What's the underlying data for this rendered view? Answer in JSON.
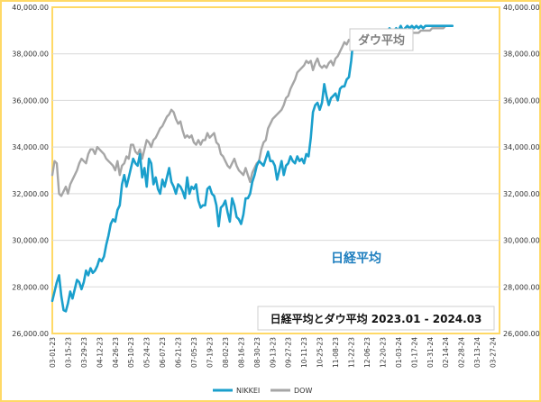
{
  "chart_data": {
    "type": "line",
    "title": "日経平均とダウ平均 2023.01 - 2024.03",
    "ylim": [
      26000,
      40000
    ],
    "y_ticks": [
      "26,000.00",
      "28,000.00",
      "30,000.00",
      "32,000.00",
      "34,000.00",
      "36,000.00",
      "38,000.00",
      "40,000.00"
    ],
    "y_tick_values": [
      26000,
      28000,
      30000,
      32000,
      34000,
      36000,
      38000,
      40000
    ],
    "x_ticks": [
      "03-01-23",
      "03-15-23",
      "03-29-23",
      "04-12-23",
      "04-26-23",
      "05-10-23",
      "05-24-23",
      "06-07-23",
      "06-21-23",
      "07-05-23",
      "07-19-23",
      "08-02-23",
      "08-16-23",
      "08-30-23",
      "09-13-23",
      "09-27-23",
      "10-11-23",
      "10-25-23",
      "11-08-23",
      "11-22-23",
      "12-06-23",
      "12-20-23",
      "01-03-24",
      "01-17-24",
      "01-31-24",
      "02-14-24",
      "02-28-24",
      "03-13-24",
      "03-27-24"
    ],
    "legend_position": "bottom",
    "grid": true,
    "annotations": {
      "dow": "ダウ平均",
      "nikkei": "日経平均"
    },
    "series": [
      {
        "name": "NIKKEI",
        "color": "#1a9fcc",
        "x": [
          0,
          2,
          4,
          6,
          8,
          10,
          12,
          14,
          16,
          18,
          20,
          22,
          24,
          26,
          28,
          30,
          32,
          34,
          36,
          38,
          40,
          42,
          44,
          46,
          48,
          50,
          52,
          54,
          56,
          58,
          60,
          62,
          64,
          66,
          68,
          70,
          72,
          74,
          76,
          78,
          80,
          82,
          84,
          86,
          88,
          90,
          92,
          94,
          96,
          98,
          100,
          102,
          104,
          106,
          108,
          110,
          112,
          114,
          116,
          118,
          120,
          122,
          124,
          126,
          128,
          130,
          132,
          134,
          136,
          138,
          140,
          142,
          144,
          146,
          148,
          150,
          152,
          154,
          156,
          158,
          160,
          162,
          164,
          166,
          168,
          170,
          172,
          174,
          176,
          178,
          180,
          182,
          184,
          186,
          188,
          190,
          192,
          194,
          196,
          198,
          200,
          202,
          204,
          206,
          208,
          210,
          212,
          214,
          216,
          218,
          220,
          222,
          224,
          226,
          228,
          230,
          232,
          234,
          236,
          238,
          240,
          242,
          244,
          246,
          248,
          250,
          252,
          254,
          256,
          258,
          260,
          262,
          264,
          266,
          268,
          270,
          272,
          274,
          276,
          278,
          280,
          282,
          284,
          286,
          288,
          290,
          292,
          294,
          296,
          298,
          300,
          302,
          304,
          306,
          308,
          310,
          312,
          314,
          316,
          318,
          320,
          322,
          324,
          326,
          328,
          330,
          332,
          334,
          336,
          338,
          340,
          342,
          344,
          346,
          348,
          350,
          352,
          354,
          356
        ],
        "values": [
          27400,
          27800,
          28200,
          28500,
          27600,
          27000,
          26950,
          27300,
          27800,
          27500,
          27900,
          28300,
          28200,
          27900,
          28200,
          28700,
          28500,
          28800,
          28600,
          28700,
          28900,
          29200,
          29100,
          29300,
          29800,
          30200,
          30700,
          30900,
          30800,
          31300,
          31500,
          32400,
          32800,
          32300,
          32700,
          33100,
          33500,
          33300,
          33200,
          33700,
          32700,
          33100,
          32300,
          33500,
          33300,
          32400,
          32700,
          32200,
          32000,
          32600,
          32300,
          32700,
          33100,
          32500,
          32300,
          32000,
          32400,
          32300,
          32100,
          31800,
          32700,
          32000,
          32300,
          32200,
          32400,
          31700,
          31400,
          31500,
          31500,
          32200,
          32300,
          32000,
          31900,
          31500,
          30600,
          31400,
          31500,
          31700,
          31200,
          30800,
          31800,
          31500,
          31000,
          30900,
          30700,
          31100,
          31800,
          31800,
          32000,
          32500,
          32800,
          33200,
          33400,
          33300,
          33200,
          33500,
          33800,
          33400,
          33400,
          33200,
          32600,
          33000,
          33400,
          32800,
          33200,
          33300,
          33600,
          33400,
          33300,
          33600,
          33400,
          33500,
          33300,
          33700,
          33600,
          34400,
          35500,
          35800,
          35900,
          35600,
          35900,
          36700,
          36200,
          35800,
          36100,
          36200,
          36300,
          36000,
          36500,
          36600,
          36600,
          36900,
          37000,
          37700,
          38700,
          38400,
          38500,
          38200,
          38700,
          38600,
          38400,
          38900,
          38500,
          38800,
          39000,
          38800,
          38600,
          38700,
          39000,
          38900,
          39100,
          39000,
          39000,
          39100,
          39000,
          39200,
          39000,
          39100,
          39200,
          39100,
          39200,
          39100,
          39200,
          39100,
          39200,
          39100,
          39200,
          39200,
          39200,
          39200,
          39200,
          39200,
          39200,
          39200,
          39200,
          39200,
          39200,
          39200,
          39200
        ]
      },
      {
        "name": "DOW",
        "color": "#a6a6a6",
        "x": [
          0,
          2,
          4,
          6,
          8,
          10,
          12,
          14,
          16,
          18,
          20,
          22,
          24,
          26,
          28,
          30,
          32,
          34,
          36,
          38,
          40,
          42,
          44,
          46,
          48,
          50,
          52,
          54,
          56,
          58,
          60,
          62,
          64,
          66,
          68,
          70,
          72,
          74,
          76,
          78,
          80,
          82,
          84,
          86,
          88,
          90,
          92,
          94,
          96,
          98,
          100,
          102,
          104,
          106,
          108,
          110,
          112,
          114,
          116,
          118,
          120,
          122,
          124,
          126,
          128,
          130,
          132,
          134,
          136,
          138,
          140,
          142,
          144,
          146,
          148,
          150,
          152,
          154,
          156,
          158,
          160,
          162,
          164,
          166,
          168,
          170,
          172,
          174,
          176,
          178,
          180,
          182,
          184,
          186,
          188,
          190,
          192,
          194,
          196,
          198,
          200,
          202,
          204,
          206,
          208,
          210,
          212,
          214,
          216,
          218,
          220,
          222,
          224,
          226,
          228,
          230,
          232,
          234,
          236,
          238,
          240,
          242,
          244,
          246,
          248,
          250,
          252,
          254,
          256,
          258,
          260,
          262,
          264,
          266,
          268,
          270,
          272,
          274,
          276,
          278,
          280,
          282,
          284,
          286,
          288,
          290,
          292,
          294,
          296,
          298,
          300,
          302,
          304,
          306,
          308,
          310,
          312,
          314,
          316,
          318,
          320,
          322,
          324,
          326,
          328,
          330,
          332,
          334,
          336,
          338,
          340,
          342,
          344,
          346,
          348,
          350,
          352,
          354,
          356
        ],
        "values": [
          32800,
          33400,
          33300,
          32000,
          31900,
          32100,
          32300,
          32000,
          32400,
          32600,
          32800,
          33000,
          33300,
          33500,
          33400,
          33300,
          33700,
          33900,
          33900,
          33700,
          34000,
          33900,
          33800,
          33700,
          33500,
          33400,
          33300,
          33200,
          33000,
          33400,
          32800,
          33200,
          33300,
          33600,
          33500,
          34100,
          34100,
          33800,
          33700,
          33900,
          33500,
          33900,
          34300,
          34200,
          34000,
          34300,
          34400,
          34600,
          34800,
          34900,
          35100,
          35300,
          35400,
          35600,
          35500,
          35200,
          35000,
          35100,
          34700,
          34400,
          34500,
          34400,
          34500,
          34200,
          34100,
          34300,
          34100,
          34300,
          34300,
          34600,
          34400,
          34500,
          34600,
          34200,
          34100,
          33700,
          33600,
          33400,
          33200,
          33100,
          33300,
          33500,
          33200,
          33000,
          32900,
          32800,
          33100,
          32800,
          32500,
          32900,
          33100,
          33300,
          33400,
          33900,
          34200,
          34300,
          34800,
          35000,
          35200,
          35300,
          35400,
          35500,
          35600,
          35800,
          36100,
          36200,
          36500,
          36700,
          36900,
          37200,
          37300,
          37400,
          37500,
          37700,
          37600,
          37700,
          37300,
          37600,
          37800,
          37500,
          37400,
          37500,
          37400,
          37600,
          37700,
          37500,
          37800,
          37900,
          38100,
          38300,
          38500,
          38400,
          38600,
          38500,
          38700,
          38800,
          38800,
          38700,
          38700,
          38800,
          38800,
          38700,
          38800,
          38800,
          38800,
          38900,
          38800,
          38700,
          38800,
          38800,
          38700,
          38800,
          38800,
          38900,
          38800,
          38800,
          38800,
          38900,
          38800,
          38800,
          38900,
          38900,
          38900,
          38900,
          39000,
          39000,
          39000,
          39000,
          39000,
          39100,
          39100,
          39100,
          39100,
          39100,
          39100,
          39200,
          39200,
          39200,
          39200
        ]
      }
    ]
  }
}
